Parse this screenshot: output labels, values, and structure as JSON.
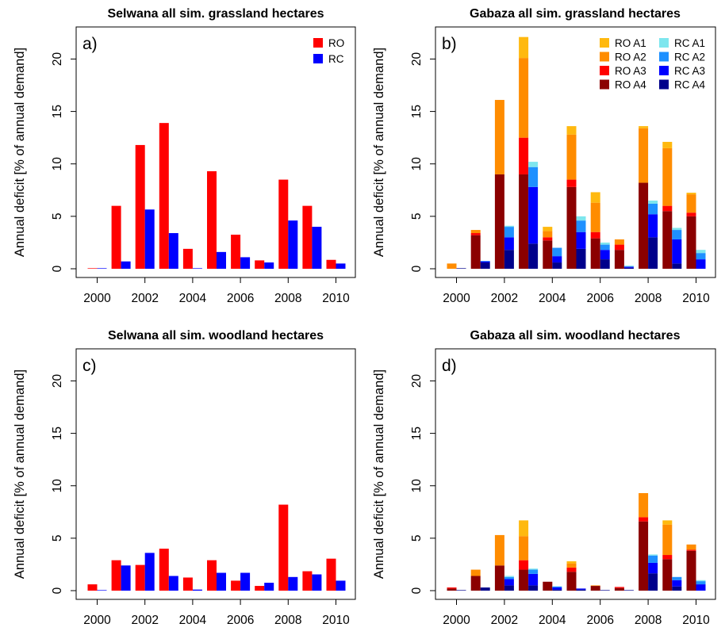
{
  "chart_data": [
    {
      "panel": "a)",
      "type": "bar",
      "title": "Selwana all sim. grassland hectares",
      "ylabel": "Annual deficit [% of annual demand]",
      "xlabel": "",
      "ylim": [
        0,
        22
      ],
      "yticks": [
        0,
        5,
        10,
        15,
        20
      ],
      "x": [
        2000,
        2001,
        2002,
        2003,
        2004,
        2005,
        2006,
        2007,
        2008,
        2009,
        2010
      ],
      "xticks": [
        2000,
        2002,
        2004,
        2006,
        2008,
        2010
      ],
      "legend_position": "top-right",
      "legend_columns": 1,
      "series": [
        {
          "name": "RO",
          "color": "#ff0000",
          "values": [
            0.05,
            6.0,
            11.8,
            13.9,
            1.9,
            9.3,
            3.25,
            0.8,
            8.5,
            6.0,
            0.85
          ]
        },
        {
          "name": "RC",
          "color": "#0000ff",
          "values": [
            0.05,
            0.7,
            5.65,
            3.4,
            0.05,
            1.6,
            1.1,
            0.6,
            4.6,
            4.0,
            0.5
          ]
        }
      ]
    },
    {
      "panel": "b)",
      "type": "bar",
      "stacked": true,
      "title": "Gabaza all sim. grassland hectares",
      "ylabel": "Annual deficit [% of annual demand]",
      "xlabel": "",
      "ylim": [
        0,
        22
      ],
      "yticks": [
        0,
        5,
        10,
        15,
        20
      ],
      "x": [
        2000,
        2001,
        2002,
        2003,
        2004,
        2005,
        2006,
        2007,
        2008,
        2009,
        2010
      ],
      "xticks": [
        2000,
        2002,
        2004,
        2006,
        2008,
        2010
      ],
      "legend_position": "top-right",
      "legend_columns": 2,
      "groups": [
        {
          "name": "RO",
          "series": [
            {
              "name": "RO A4",
              "color": "#8b0000",
              "values": [
                0.0,
                3.2,
                9.0,
                9.0,
                2.7,
                7.8,
                2.9,
                1.8,
                8.2,
                5.5,
                5.0
              ]
            },
            {
              "name": "RO A3",
              "color": "#ff0000",
              "values": [
                0.0,
                0.2,
                0.0,
                3.5,
                0.3,
                0.7,
                0.6,
                0.5,
                0.0,
                0.5,
                0.35
              ]
            },
            {
              "name": "RO A2",
              "color": "#ff8c00",
              "values": [
                0.5,
                0.3,
                7.1,
                7.6,
                0.6,
                4.3,
                2.8,
                0.5,
                5.2,
                5.5,
                1.75
              ]
            },
            {
              "name": "RO A1",
              "color": "#ffb90f",
              "values": [
                0.0,
                0.0,
                0.0,
                2.0,
                0.4,
                0.8,
                1.0,
                0.0,
                0.2,
                0.6,
                0.15
              ]
            }
          ]
        },
        {
          "name": "RC",
          "series": [
            {
              "name": "RC A4",
              "color": "#00008b",
              "values": [
                0.05,
                0.6,
                1.8,
                2.4,
                0.6,
                1.9,
                0.9,
                0.1,
                3.0,
                0.5,
                0.0
              ]
            },
            {
              "name": "RC A3",
              "color": "#0000ff",
              "values": [
                0.0,
                0.1,
                1.2,
                5.4,
                0.6,
                1.6,
                0.9,
                0.1,
                2.2,
                2.3,
                0.9
              ]
            },
            {
              "name": "RC A2",
              "color": "#1e90ff",
              "values": [
                0.0,
                0.05,
                1.0,
                1.9,
                0.8,
                1.1,
                0.5,
                0.0,
                1.0,
                0.9,
                0.6
              ]
            },
            {
              "name": "RC A1",
              "color": "#7ee6ee",
              "values": [
                0.0,
                0.0,
                0.1,
                0.5,
                0.0,
                0.4,
                0.2,
                0.1,
                0.3,
                0.2,
                0.3
              ]
            }
          ]
        }
      ],
      "legend_order": [
        "RO A1",
        "RC A1",
        "RO A2",
        "RC A2",
        "RO A3",
        "RC A3",
        "RO A4",
        "RC A4"
      ]
    },
    {
      "panel": "c)",
      "type": "bar",
      "title": "Selwana all sim. woodland hectares",
      "ylabel": "Annual deficit [% of annual demand]",
      "xlabel": "",
      "ylim": [
        0,
        22
      ],
      "yticks": [
        0,
        5,
        10,
        15,
        20
      ],
      "x": [
        2000,
        2001,
        2002,
        2003,
        2004,
        2005,
        2006,
        2007,
        2008,
        2009,
        2010
      ],
      "xticks": [
        2000,
        2002,
        2004,
        2006,
        2008,
        2010
      ],
      "series": [
        {
          "name": "RO",
          "color": "#ff0000",
          "values": [
            0.6,
            2.9,
            2.45,
            4.0,
            1.25,
            2.9,
            0.95,
            0.45,
            8.2,
            1.85,
            3.05
          ]
        },
        {
          "name": "RC",
          "color": "#0000ff",
          "values": [
            0.05,
            2.4,
            3.6,
            1.4,
            0.1,
            1.7,
            1.7,
            0.75,
            1.3,
            1.55,
            0.95
          ]
        }
      ]
    },
    {
      "panel": "d)",
      "type": "bar",
      "stacked": true,
      "title": "Gabaza all sim. woodland hectares",
      "ylabel": "Annual deficit [% of annual demand]",
      "xlabel": "",
      "ylim": [
        0,
        22
      ],
      "yticks": [
        0,
        5,
        10,
        15,
        20
      ],
      "x": [
        2000,
        2001,
        2002,
        2003,
        2004,
        2005,
        2006,
        2007,
        2008,
        2009,
        2010
      ],
      "xticks": [
        2000,
        2002,
        2004,
        2006,
        2008,
        2010
      ],
      "groups": [
        {
          "name": "RO",
          "series": [
            {
              "name": "RO A4",
              "color": "#8b0000",
              "values": [
                0.2,
                1.4,
                2.4,
                2.0,
                0.85,
                1.8,
                0.45,
                0.25,
                6.6,
                3.0,
                3.8
              ]
            },
            {
              "name": "RO A3",
              "color": "#ff0000",
              "values": [
                0.1,
                0.0,
                0.0,
                0.9,
                0.0,
                0.4,
                0.0,
                0.1,
                0.4,
                0.4,
                0.1
              ]
            },
            {
              "name": "RO A2",
              "color": "#ff8c00",
              "values": [
                0.0,
                0.6,
                2.9,
                2.3,
                0.0,
                0.4,
                0.05,
                0.0,
                2.3,
                2.9,
                0.5
              ]
            },
            {
              "name": "RO A1",
              "color": "#ffb90f",
              "values": [
                0.0,
                0.0,
                0.0,
                1.5,
                0.0,
                0.2,
                0.0,
                0.0,
                0.0,
                0.4,
                0.0
              ]
            }
          ]
        },
        {
          "name": "RC",
          "series": [
            {
              "name": "RC A4",
              "color": "#00008b",
              "values": [
                0.05,
                0.3,
                0.5,
                0.5,
                0.1,
                0.1,
                0.05,
                0.05,
                1.65,
                0.4,
                0.0
              ]
            },
            {
              "name": "RC A3",
              "color": "#0000ff",
              "values": [
                0.0,
                0.0,
                0.6,
                1.1,
                0.2,
                0.1,
                0.0,
                0.0,
                1.0,
                0.6,
                0.6
              ]
            },
            {
              "name": "RC A2",
              "color": "#1e90ff",
              "values": [
                0.0,
                0.0,
                0.2,
                0.4,
                0.1,
                0.0,
                0.0,
                0.0,
                0.7,
                0.3,
                0.3
              ]
            },
            {
              "name": "RC A1",
              "color": "#7ee6ee",
              "values": [
                0.0,
                0.0,
                0.1,
                0.1,
                0.0,
                0.0,
                0.0,
                0.0,
                0.1,
                0.0,
                0.1
              ]
            }
          ]
        }
      ]
    }
  ]
}
